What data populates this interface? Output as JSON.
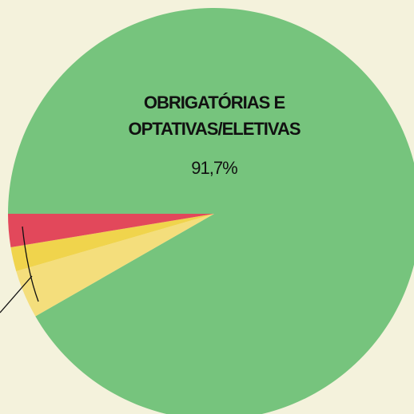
{
  "chart_data": {
    "type": "pie",
    "categories": [
      "OBRIGATÓRIAS E OPTATIVAS/ELETIVAS",
      null,
      null,
      null
    ],
    "values": [
      91.7,
      3.8,
      1.9,
      2.6
    ],
    "value_labels": [
      "91,7%",
      null,
      null,
      null
    ],
    "colors": [
      "#76c47d",
      "#f4de7c",
      "#f0d44c",
      "#e2485b"
    ]
  }
}
